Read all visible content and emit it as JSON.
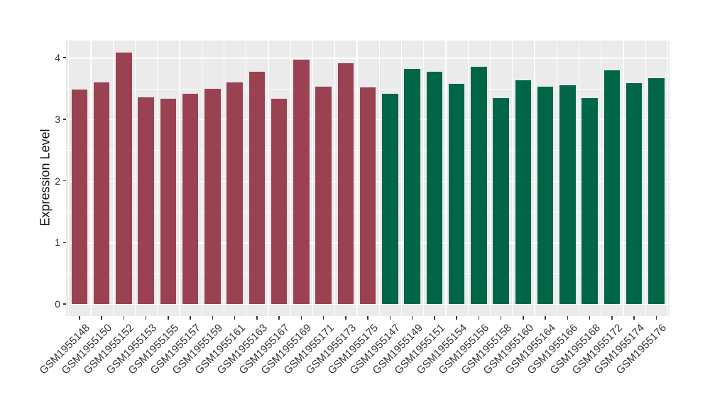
{
  "figure": {
    "background_color": "#FFFFFF",
    "panel_background_color": "#EBEBEB",
    "grid_color": "#FFFFFF",
    "axis_text_color": "#333333"
  },
  "chart_data": {
    "type": "bar",
    "title": "",
    "xlabel": "",
    "ylabel": "Expression Level",
    "ylim": [
      -0.19,
      4.28
    ],
    "yticks": [
      0,
      1,
      2,
      3,
      4
    ],
    "grid": "major and minor horizontal white lines on grey panel, vertical white lines between bars",
    "legend_position": "none",
    "categories": [
      "GSM1955148",
      "GSM1955150",
      "GSM1955152",
      "GSM1955153",
      "GSM1955155",
      "GSM1955157",
      "GSM1955159",
      "GSM1955161",
      "GSM1955163",
      "GSM1955167",
      "GSM1955169",
      "GSM1955171",
      "GSM1955173",
      "GSM1955175",
      "GSM1955147",
      "GSM1955149",
      "GSM1955151",
      "GSM1955154",
      "GSM1955156",
      "GSM1955158",
      "GSM1955160",
      "GSM1955164",
      "GSM1955166",
      "GSM1955168",
      "GSM1955172",
      "GSM1955174",
      "GSM1955176"
    ],
    "values": [
      3.48,
      3.6,
      4.08,
      3.36,
      3.33,
      3.41,
      3.49,
      3.6,
      3.77,
      3.33,
      3.97,
      3.53,
      3.91,
      3.52,
      3.41,
      3.82,
      3.77,
      3.57,
      3.85,
      3.35,
      3.63,
      3.53,
      3.55,
      3.35,
      3.8,
      3.59,
      3.67
    ],
    "bar_group_index": [
      0,
      0,
      0,
      0,
      0,
      0,
      0,
      0,
      0,
      0,
      0,
      0,
      0,
      0,
      1,
      1,
      1,
      1,
      1,
      1,
      1,
      1,
      1,
      1,
      1,
      1,
      1
    ],
    "group_colors": [
      "#9A4252",
      "#016647"
    ],
    "minor_yticks": [
      0.5,
      1.5,
      2.5,
      3.5
    ]
  }
}
